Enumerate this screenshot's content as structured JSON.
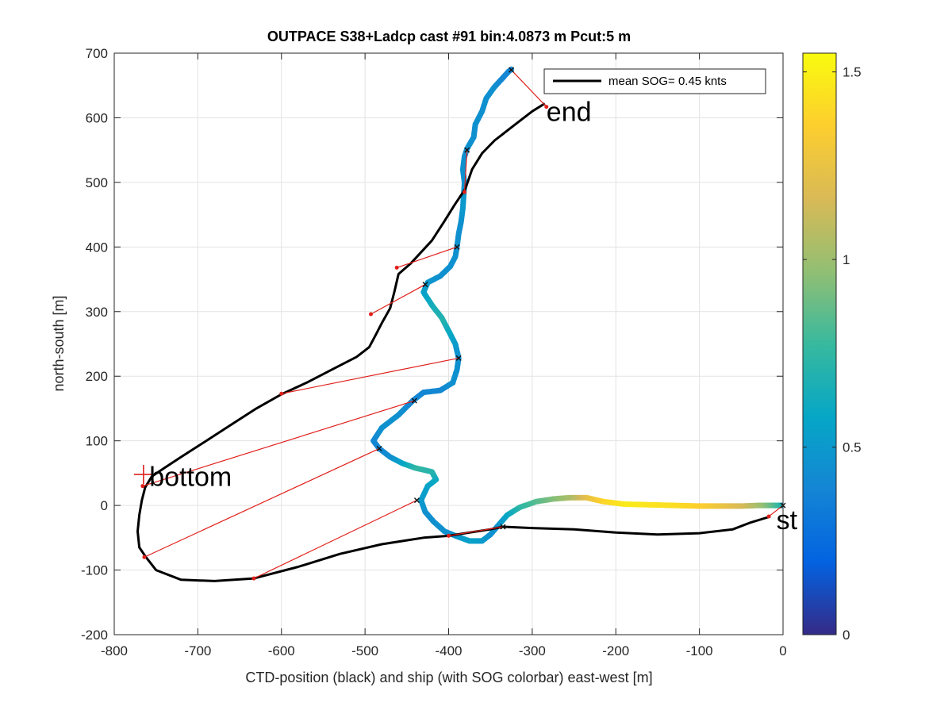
{
  "chart_data": {
    "type": "scatter",
    "title": "OUTPACE S38+Ladcp cast #91 bin:4.0873 m  Pcut:5 m",
    "xlabel": "CTD-position (black) and ship (with SOG colorbar) east-west [m]",
    "ylabel": "north-south [m]",
    "xlim": [
      -800,
      0
    ],
    "ylim": [
      -200,
      700
    ],
    "xticks": [
      "-800",
      "-700",
      "-600",
      "-500",
      "-400",
      "-300",
      "-200",
      "-100",
      "0"
    ],
    "yticks": [
      "-200",
      "-100",
      "0",
      "100",
      "200",
      "300",
      "400",
      "500",
      "600",
      "700"
    ],
    "grid": true,
    "legend": {
      "placement": "top-right",
      "label": "mean SOG=  0.45 knts",
      "line_color": "#000000"
    },
    "colorbar": {
      "range": [
        0,
        1.55
      ],
      "ticks": [
        "0",
        "0.5",
        "1",
        "1.5"
      ],
      "tick_values": [
        0,
        0.5,
        1,
        1.5
      ],
      "colormap": [
        "#352a87",
        "#0363e1",
        "#1485d4",
        "#06a7c6",
        "#38b99e",
        "#92bf73",
        "#d9ba56",
        "#fcce2e",
        "#f9fb0e"
      ]
    },
    "annotations": [
      {
        "text": "end",
        "x": -283,
        "y": 610
      },
      {
        "text": "bottom",
        "x": -758,
        "y": 45
      },
      {
        "text": "start",
        "x": -8,
        "y": -22
      }
    ],
    "bottom_marker": {
      "x": -765,
      "y": 48
    },
    "series": [
      {
        "name": "CTD-position",
        "color": "#000000",
        "points": [
          [
            -15,
            -17
          ],
          [
            -40,
            -27
          ],
          [
            -60,
            -37
          ],
          [
            -100,
            -43
          ],
          [
            -150,
            -45
          ],
          [
            -200,
            -42
          ],
          [
            -250,
            -37
          ],
          [
            -300,
            -35
          ],
          [
            -335,
            -33
          ],
          [
            -350,
            -37
          ],
          [
            -400,
            -47
          ],
          [
            -430,
            -50
          ],
          [
            -480,
            -60
          ],
          [
            -530,
            -75
          ],
          [
            -580,
            -95
          ],
          [
            -633,
            -113
          ],
          [
            -680,
            -117
          ],
          [
            -720,
            -115
          ],
          [
            -750,
            -100
          ],
          [
            -762,
            -80
          ],
          [
            -770,
            -65
          ],
          [
            -772,
            -40
          ],
          [
            -770,
            -15
          ],
          [
            -767,
            8
          ],
          [
            -763,
            28
          ],
          [
            -755,
            45
          ],
          [
            -740,
            58
          ],
          [
            -720,
            75
          ],
          [
            -690,
            100
          ],
          [
            -660,
            125
          ],
          [
            -630,
            150
          ],
          [
            -600,
            172
          ],
          [
            -570,
            190
          ],
          [
            -540,
            210
          ],
          [
            -510,
            230
          ],
          [
            -495,
            245
          ],
          [
            -488,
            262
          ],
          [
            -480,
            282
          ],
          [
            -470,
            305
          ],
          [
            -465,
            330
          ],
          [
            -460,
            358
          ],
          [
            -445,
            375
          ],
          [
            -420,
            410
          ],
          [
            -405,
            440
          ],
          [
            -393,
            465
          ],
          [
            -380,
            490
          ],
          [
            -372,
            520
          ],
          [
            -360,
            545
          ],
          [
            -345,
            565
          ],
          [
            -320,
            590
          ],
          [
            -300,
            610
          ],
          [
            -285,
            622
          ]
        ]
      },
      {
        "name": "ship",
        "points": [
          [
            0,
            0,
            0.5
          ],
          [
            -5,
            0,
            0.7
          ],
          [
            -15,
            0,
            0.85
          ],
          [
            -30,
            0,
            1.0
          ],
          [
            -50,
            -1,
            1.15
          ],
          [
            -75,
            -1,
            1.25
          ],
          [
            -100,
            -1,
            1.35
          ],
          [
            -130,
            0,
            1.42
          ],
          [
            -160,
            1,
            1.45
          ],
          [
            -190,
            2,
            1.48
          ],
          [
            -215,
            6,
            1.4
          ],
          [
            -235,
            12,
            1.25
          ],
          [
            -255,
            12,
            1.05
          ],
          [
            -275,
            10,
            0.95
          ],
          [
            -295,
            6,
            0.85
          ],
          [
            -315,
            -3,
            0.75
          ],
          [
            -330,
            -15,
            0.6
          ],
          [
            -340,
            -30,
            0.5
          ],
          [
            -350,
            -45,
            0.45
          ],
          [
            -360,
            -55,
            0.5
          ],
          [
            -375,
            -55,
            0.55
          ],
          [
            -390,
            -48,
            0.5
          ],
          [
            -405,
            -40,
            0.45
          ],
          [
            -418,
            -25,
            0.45
          ],
          [
            -428,
            -10,
            0.45
          ],
          [
            -433,
            8,
            0.5
          ],
          [
            -425,
            30,
            0.55
          ],
          [
            -415,
            40,
            0.6
          ],
          [
            -420,
            52,
            0.7
          ],
          [
            -440,
            58,
            0.75
          ],
          [
            -455,
            65,
            0.6
          ],
          [
            -470,
            75,
            0.45
          ],
          [
            -483,
            88,
            0.4
          ],
          [
            -490,
            100,
            0.4
          ],
          [
            -480,
            120,
            0.45
          ],
          [
            -460,
            140,
            0.45
          ],
          [
            -443,
            162,
            0.4
          ],
          [
            -430,
            175,
            0.4
          ],
          [
            -410,
            178,
            0.4
          ],
          [
            -395,
            190,
            0.45
          ],
          [
            -390,
            210,
            0.45
          ],
          [
            -388,
            228,
            0.45
          ],
          [
            -392,
            250,
            0.5
          ],
          [
            -400,
            270,
            0.6
          ],
          [
            -408,
            290,
            0.7
          ],
          [
            -420,
            310,
            0.65
          ],
          [
            -430,
            330,
            0.55
          ],
          [
            -425,
            345,
            0.5
          ],
          [
            -410,
            355,
            0.45
          ],
          [
            -398,
            370,
            0.45
          ],
          [
            -392,
            385,
            0.45
          ],
          [
            -390,
            400,
            0.45
          ],
          [
            -388,
            420,
            0.45
          ],
          [
            -385,
            440,
            0.45
          ],
          [
            -383,
            460,
            0.5
          ],
          [
            -382,
            480,
            0.5
          ],
          [
            -381,
            500,
            0.45
          ],
          [
            -383,
            520,
            0.45
          ],
          [
            -381,
            540,
            0.45
          ],
          [
            -378,
            552,
            0.45
          ],
          [
            -370,
            570,
            0.45
          ],
          [
            -368,
            590,
            0.45
          ],
          [
            -360,
            610,
            0.45
          ],
          [
            -355,
            630,
            0.45
          ],
          [
            -345,
            648,
            0.45
          ],
          [
            -335,
            662,
            0.4
          ],
          [
            -328,
            672,
            0.4
          ],
          [
            -325,
            675,
            0.4
          ]
        ]
      }
    ],
    "connector_lines": [
      [
        [
          -325,
          674
        ],
        [
          -283,
          617
        ]
      ],
      [
        [
          -378,
          550
        ],
        [
          -381,
          485
        ]
      ],
      [
        [
          -390,
          400
        ],
        [
          -462,
          368
        ]
      ],
      [
        [
          -428,
          342
        ],
        [
          -493,
          296
        ]
      ],
      [
        [
          -388,
          228
        ],
        [
          -600,
          173
        ]
      ],
      [
        [
          -441,
          162
        ],
        [
          -766,
          30
        ]
      ],
      [
        [
          -483,
          88
        ],
        [
          -764,
          -80
        ]
      ],
      [
        [
          -438,
          8
        ],
        [
          -633,
          -113
        ]
      ],
      [
        [
          -335,
          -33
        ],
        [
          -400,
          -47
        ]
      ],
      [
        [
          0,
          0
        ],
        [
          -17,
          -17
        ]
      ]
    ],
    "ctd_markers": [
      [
        -283,
        617
      ],
      [
        -381,
        485
      ],
      [
        -462,
        368
      ],
      [
        -493,
        296
      ],
      [
        -600,
        173
      ],
      [
        -766,
        30
      ],
      [
        -764,
        -80
      ],
      [
        -633,
        -113
      ],
      [
        -400,
        -47
      ],
      [
        -17,
        -17
      ]
    ],
    "ship_markers": [
      [
        -325,
        674
      ],
      [
        -378,
        550
      ],
      [
        -390,
        400
      ],
      [
        -428,
        342
      ],
      [
        -388,
        228
      ],
      [
        -441,
        162
      ],
      [
        -483,
        88
      ],
      [
        -438,
        8
      ],
      [
        -335,
        -33
      ],
      [
        0,
        0
      ]
    ]
  }
}
